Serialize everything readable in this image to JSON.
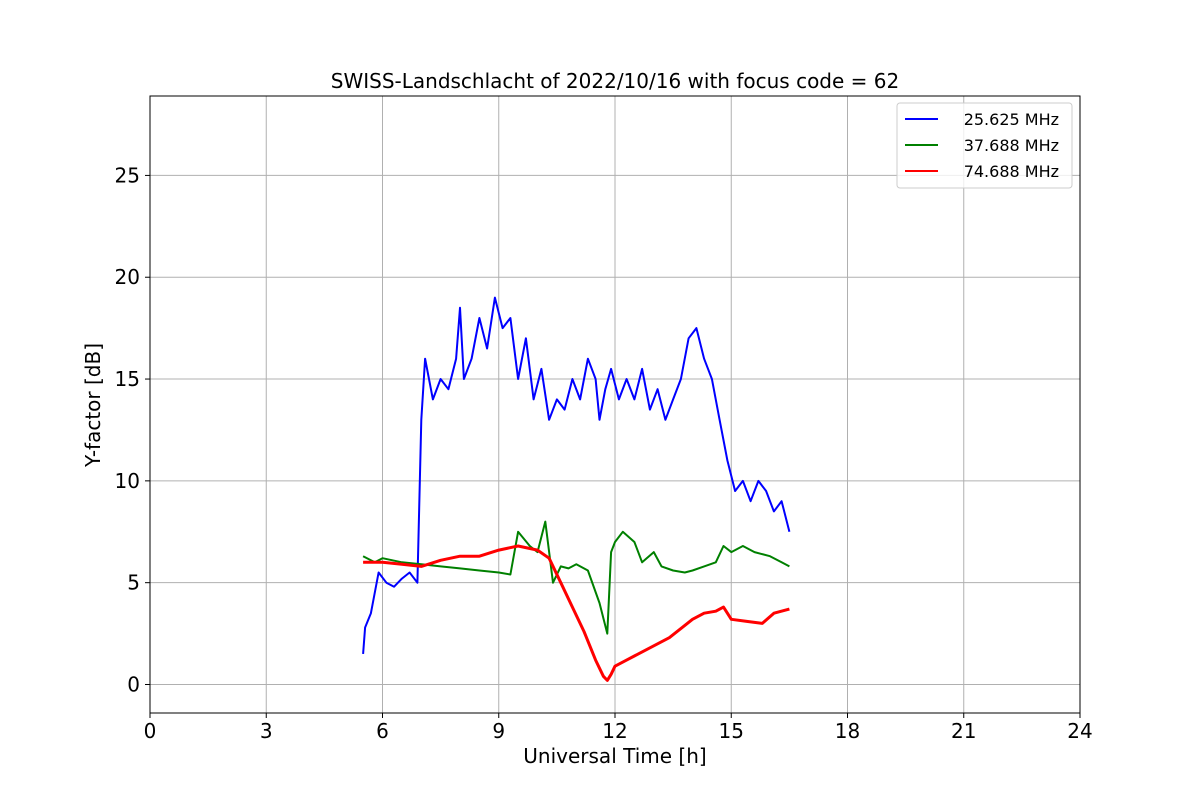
{
  "chart_data": {
    "type": "line",
    "title": "SWISS-Landschlacht of 2022/10/16 with focus code = 62",
    "xlabel": "Universal Time [h]",
    "ylabel": "Y-factor [dB]",
    "xlim": [
      0,
      24
    ],
    "ylim": [
      -1.4,
      28.9
    ],
    "xticks": [
      0,
      3,
      6,
      9,
      12,
      15,
      18,
      21,
      24
    ],
    "yticks": [
      0,
      5,
      10,
      15,
      20,
      25
    ],
    "grid": true,
    "legend_position": "top-right",
    "series": [
      {
        "name": "25.625 MHz",
        "color": "#0000ff",
        "x": [
          5.5,
          5.55,
          5.7,
          5.9,
          6.1,
          6.3,
          6.5,
          6.7,
          6.9,
          7.0,
          7.1,
          7.3,
          7.5,
          7.7,
          7.9,
          8.0,
          8.1,
          8.3,
          8.5,
          8.7,
          8.9,
          9.1,
          9.3,
          9.5,
          9.7,
          9.9,
          10.1,
          10.3,
          10.5,
          10.7,
          10.9,
          11.1,
          11.3,
          11.5,
          11.6,
          11.75,
          11.9,
          12.1,
          12.3,
          12.5,
          12.7,
          12.9,
          13.1,
          13.3,
          13.5,
          13.7,
          13.9,
          14.1,
          14.3,
          14.5,
          14.7,
          14.9,
          15.1,
          15.3,
          15.5,
          15.7,
          15.9,
          16.1,
          16.3,
          16.5
        ],
        "y": [
          1.5,
          2.8,
          3.5,
          5.5,
          5.0,
          4.8,
          5.2,
          5.5,
          5.0,
          13.0,
          16.0,
          14.0,
          15.0,
          14.5,
          16.0,
          18.5,
          15.0,
          16.0,
          18.0,
          16.5,
          19.0,
          17.5,
          18.0,
          15.0,
          17.0,
          14.0,
          15.5,
          13.0,
          14.0,
          13.5,
          15.0,
          14.0,
          16.0,
          15.0,
          13.0,
          14.5,
          15.5,
          14.0,
          15.0,
          14.0,
          15.5,
          13.5,
          14.5,
          13.0,
          14.0,
          15.0,
          17.0,
          17.5,
          16.0,
          15.0,
          13.0,
          11.0,
          9.5,
          10.0,
          9.0,
          10.0,
          9.5,
          8.5,
          9.0,
          7.5
        ]
      },
      {
        "name": "37.688 MHz",
        "color": "#008000",
        "x": [
          5.5,
          5.8,
          6.0,
          6.5,
          7.0,
          7.5,
          8.0,
          8.5,
          9.0,
          9.3,
          9.5,
          9.8,
          10.0,
          10.2,
          10.4,
          10.6,
          10.8,
          11.0,
          11.3,
          11.6,
          11.8,
          11.9,
          12.0,
          12.2,
          12.5,
          12.7,
          13.0,
          13.2,
          13.5,
          13.8,
          14.0,
          14.3,
          14.6,
          14.8,
          15.0,
          15.3,
          15.6,
          16.0,
          16.3,
          16.5
        ],
        "y": [
          6.3,
          6.0,
          6.2,
          6.0,
          5.9,
          5.8,
          5.7,
          5.6,
          5.5,
          5.4,
          7.5,
          6.8,
          6.5,
          8.0,
          5.0,
          5.8,
          5.7,
          5.9,
          5.6,
          4.0,
          2.5,
          6.5,
          7.0,
          7.5,
          7.0,
          6.0,
          6.5,
          5.8,
          5.6,
          5.5,
          5.6,
          5.8,
          6.0,
          6.8,
          6.5,
          6.8,
          6.5,
          6.3,
          6.0,
          5.8
        ]
      },
      {
        "name": "74.688 MHz",
        "color": "#ff0000",
        "x": [
          5.5,
          6.0,
          6.5,
          7.0,
          7.5,
          8.0,
          8.5,
          9.0,
          9.5,
          10.0,
          10.3,
          10.6,
          10.9,
          11.2,
          11.5,
          11.7,
          11.8,
          11.9,
          12.0,
          12.3,
          12.6,
          13.0,
          13.4,
          13.8,
          14.0,
          14.3,
          14.6,
          14.8,
          15.0,
          15.4,
          15.8,
          16.1,
          16.5
        ],
        "y": [
          6.0,
          6.0,
          5.9,
          5.8,
          6.1,
          6.3,
          6.3,
          6.6,
          6.8,
          6.6,
          6.2,
          5.0,
          3.8,
          2.6,
          1.2,
          0.4,
          0.2,
          0.5,
          0.9,
          1.2,
          1.5,
          1.9,
          2.3,
          2.9,
          3.2,
          3.5,
          3.6,
          3.8,
          3.2,
          3.1,
          3.0,
          3.5,
          3.7
        ]
      }
    ]
  }
}
